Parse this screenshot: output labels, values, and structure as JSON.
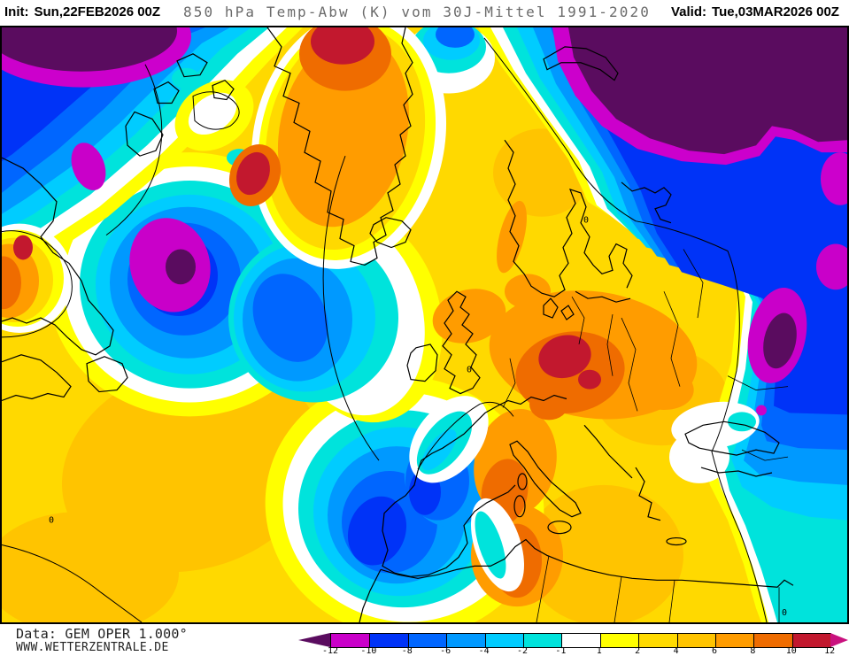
{
  "header": {
    "init_label": "Init:",
    "init_value": "Sun,22FEB2026 00Z",
    "title": "850 hPa Temp-Abw (K) vom 30J-Mittel 1991-2020",
    "valid_label": "Valid:",
    "valid_value": "Tue,03MAR2026 00Z"
  },
  "footer": {
    "data_line": "Data: GEM OPER 1.000°",
    "site": "WWW.WETTERZENTRALE.DE"
  },
  "legend": {
    "cells": [
      "#C900C9",
      "#0033F7",
      "#0066FF",
      "#0099FF",
      "#00CCFF",
      "#00E3DC",
      "#FFFFFF",
      "#FFFF00",
      "#FFDA00",
      "#FFC400",
      "#FF9C00",
      "#EF6C00",
      "#C2182E"
    ],
    "ticks": [
      "-12",
      "-10",
      "-8",
      "-6",
      "-4",
      "-2",
      "-1",
      "1",
      "2",
      "4",
      "6",
      "8",
      "10",
      "12"
    ],
    "arrow_left_color": "#5A0C5F",
    "arrow_right_color": "#C9117E"
  },
  "map": {
    "zero_label": "0"
  }
}
